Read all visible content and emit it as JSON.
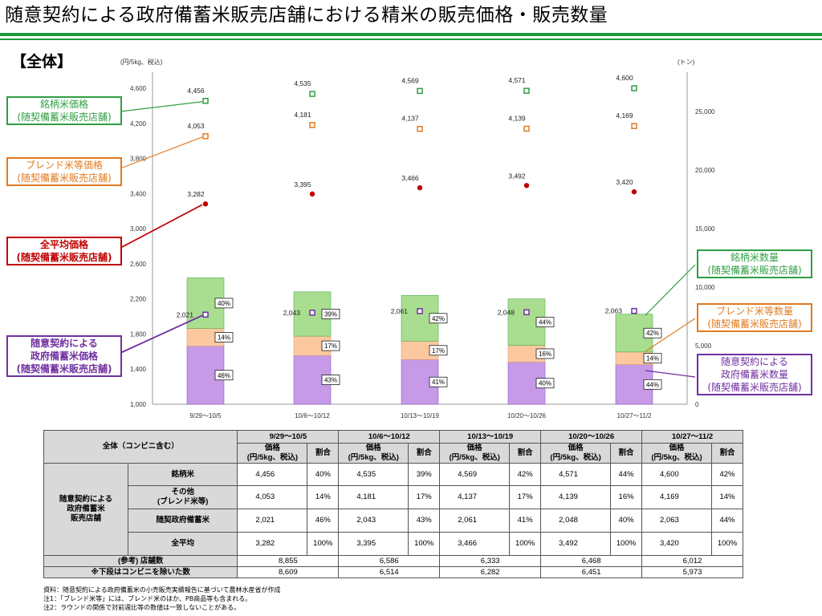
{
  "title": "随意契約による政府備蓄米販売店舗における精米の販売価格・販売数量",
  "section": "【全体】",
  "colors": {
    "green": "#2f9e44",
    "orange": "#e07b20",
    "red": "#c00000",
    "purple": "#7030a0",
    "green_fill": "#a9dd8f",
    "orange_fill": "#fbc8a0",
    "purple_fill": "#c79ae8",
    "rule": "#1a9a3c"
  },
  "chart_data": {
    "type": "bar+scatter",
    "left_axis_label": "(円/5kg、税込)",
    "right_axis_label": "(トン)",
    "left_ylim": [
      1000,
      4600
    ],
    "left_ticks": [
      "4,600",
      "4,200",
      "3,800",
      "3,400",
      "3,000",
      "2,600",
      "2,200",
      "1,800",
      "1,400",
      "1,000"
    ],
    "right_ylim": [
      0,
      27000
    ],
    "right_ticks": [
      "25,000",
      "20,000",
      "15,000",
      "10,000",
      "5,000",
      "0"
    ],
    "categories": [
      "9/29～10/5",
      "10/6～10/12",
      "10/13～10/19",
      "10/20～10/26",
      "10/27～11/2"
    ],
    "prices": {
      "brand": {
        "values": [
          4456,
          4535,
          4569,
          4571,
          4600
        ],
        "labels": [
          "4,456",
          "4,535",
          "4,569",
          "4,571",
          "4,600"
        ]
      },
      "blend": {
        "values": [
          4053,
          4181,
          4137,
          4139,
          4169
        ],
        "labels": [
          "4,053",
          "4,181",
          "4,137",
          "4,139",
          "4,169"
        ]
      },
      "average": {
        "values": [
          3282,
          3395,
          3466,
          3492,
          3420
        ],
        "labels": [
          "3,282",
          "3,395",
          "3,466",
          "3,492",
          "3,420"
        ]
      },
      "gov": {
        "values": [
          2021,
          2043,
          2061,
          2048,
          2063
        ],
        "labels": [
          "2,021",
          "2,043",
          "2,061",
          "2,048",
          "2,063"
        ]
      }
    },
    "quantity_shares": {
      "gov": [
        "46%",
        "43%",
        "41%",
        "40%",
        "44%"
      ],
      "blend": [
        "14%",
        "17%",
        "17%",
        "16%",
        "14%"
      ],
      "brand": [
        "40%",
        "39%",
        "42%",
        "44%",
        "42%"
      ]
    },
    "quantity_shares_num": {
      "gov": [
        46,
        43,
        41,
        40,
        44
      ],
      "blend": [
        14,
        17,
        17,
        16,
        14
      ],
      "brand": [
        40,
        39,
        42,
        44,
        42
      ]
    },
    "quantity_totals_ton": [
      10800,
      9700,
      9300,
      9000,
      7700
    ]
  },
  "callouts": {
    "brand_price": [
      "銘柄米価格",
      "(随契備蓄米販売店舗)"
    ],
    "blend_price": [
      "ブレンド米等価格",
      "(随契備蓄米販売店舗)"
    ],
    "avg_price": [
      "全平均価格",
      "(随契備蓄米販売店舗)"
    ],
    "gov_price": [
      "随意契約による",
      "政府備蓄米価格",
      "(随契備蓄米販売店舗)"
    ],
    "brand_qty": [
      "銘柄米数量",
      "(随契備蓄米販売店舗)"
    ],
    "blend_qty": [
      "ブレンド米等数量",
      "(随契備蓄米販売店舗)"
    ],
    "gov_qty": [
      "随意契約による",
      "政府備蓄米数量",
      "(随契備蓄米販売店舗)"
    ]
  },
  "table": {
    "corner": "全体（コンビニ含む）",
    "periods": [
      "9/29～10/5",
      "10/6～10/12",
      "10/13～10/19",
      "10/20～10/26",
      "10/27～11/2"
    ],
    "price_header": [
      "価格",
      "(円/5kg、税込)"
    ],
    "share_header": "割合",
    "group_label": [
      "随意契約による",
      "政府備蓄米",
      "販売店舗"
    ],
    "rows": [
      {
        "label": [
          "銘柄米"
        ],
        "prices": [
          "4,456",
          "4,535",
          "4,569",
          "4,571",
          "4,600"
        ],
        "shares": [
          "40%",
          "39%",
          "42%",
          "44%",
          "42%"
        ]
      },
      {
        "label": [
          "その他",
          "(ブレンド米等)"
        ],
        "prices": [
          "4,053",
          "4,181",
          "4,137",
          "4,139",
          "4,169"
        ],
        "shares": [
          "14%",
          "17%",
          "17%",
          "16%",
          "14%"
        ]
      },
      {
        "label": [
          "随契政府備蓄米"
        ],
        "prices": [
          "2,021",
          "2,043",
          "2,061",
          "2,048",
          "2,063"
        ],
        "shares": [
          "46%",
          "43%",
          "41%",
          "40%",
          "44%"
        ]
      },
      {
        "label": [
          "全平均"
        ],
        "prices": [
          "3,282",
          "3,395",
          "3,466",
          "3,492",
          "3,420"
        ],
        "shares": [
          "100%",
          "100%",
          "100%",
          "100%",
          "100%"
        ]
      }
    ],
    "stores_label": [
      "(参考) 店舗数",
      "※下段はコンビニを除いた数"
    ],
    "stores": [
      "8,855",
      "6,586",
      "6,333",
      "6,468",
      "6,012"
    ],
    "stores_ex": [
      "8,609",
      "6,514",
      "6,282",
      "6,451",
      "5,973"
    ]
  },
  "notes": [
    "資料：随意契約による政府備蓄米の小売販売実績報告に基づいて農林水産省が作成",
    "注1：「ブレンド米等」には、ブレンド米のほか、PB商品等も含まれる。",
    "注2：ラウンドの関係で対前週比等の数値は一致しないことがある。"
  ]
}
